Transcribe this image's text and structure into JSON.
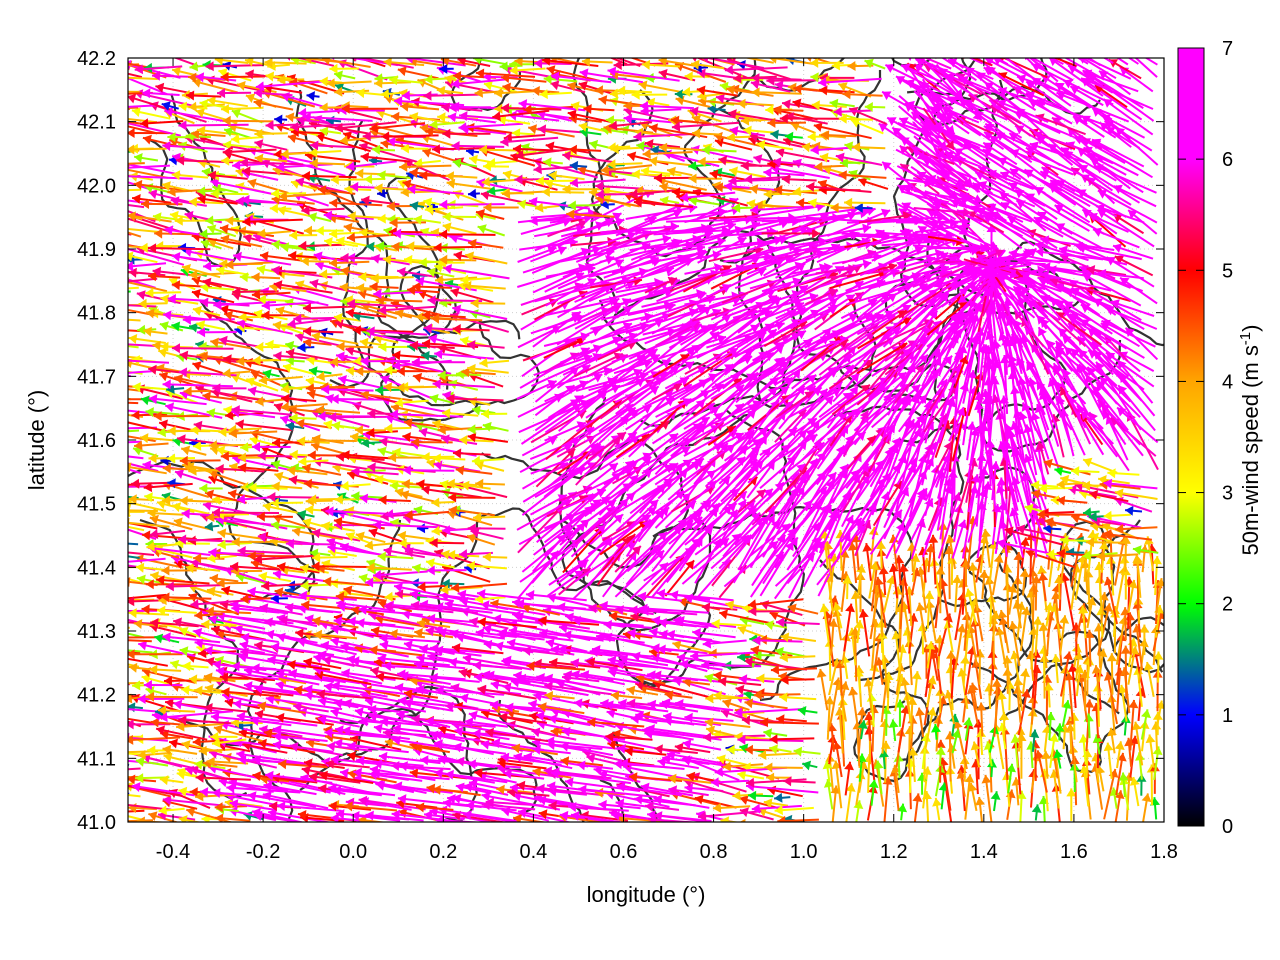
{
  "chart_data": {
    "type": "vector-field",
    "xlabel": "longitude (°)",
    "ylabel": "latitude (°)",
    "xlim": [
      -0.5,
      1.8
    ],
    "ylim": [
      41.0,
      42.2
    ],
    "xticks": [
      "-0.4",
      "-0.2",
      "0.0",
      "0.2",
      "0.4",
      "0.6",
      "0.8",
      "1.0",
      "1.2",
      "1.4",
      "1.6",
      "1.8"
    ],
    "yticks": [
      "41.0",
      "41.1",
      "41.2",
      "41.3",
      "41.4",
      "41.5",
      "41.6",
      "41.7",
      "41.8",
      "41.9",
      "42.0",
      "42.1",
      "42.2"
    ],
    "grid": true,
    "colorbar": {
      "label": "50m-wind speed (m s-1)",
      "range": [
        0,
        7
      ],
      "ticks": [
        "0",
        "1",
        "2",
        "3",
        "4",
        "5",
        "6",
        "7"
      ],
      "colors": [
        "#000000",
        "#0000ff",
        "#00ff00",
        "#ffff00",
        "#ffa500",
        "#ff0000",
        "#ff00ff"
      ]
    },
    "sample_vectors": [
      {
        "lon": -0.42,
        "lat": 42.06,
        "u": -0.5,
        "v": 0.0,
        "speed": 1.2
      },
      {
        "lon": -0.35,
        "lat": 41.7,
        "u": -2.5,
        "v": 0.5,
        "speed": 5.5
      },
      {
        "lon": 0.3,
        "lat": 41.15,
        "u": -6.5,
        "v": 0.6,
        "speed": 7.0
      },
      {
        "lon": 0.55,
        "lat": 41.55,
        "u": -0.8,
        "v": 3.0,
        "speed": 6.8
      },
      {
        "lon": 1.45,
        "lat": 41.85,
        "u": -3.0,
        "v": -1.5,
        "speed": 7.0
      },
      {
        "lon": 1.5,
        "lat": 41.1,
        "u": 0.1,
        "v": 2.2,
        "speed": 4.2
      }
    ],
    "contours": "terrain elevation contour lines (dark grey)"
  }
}
